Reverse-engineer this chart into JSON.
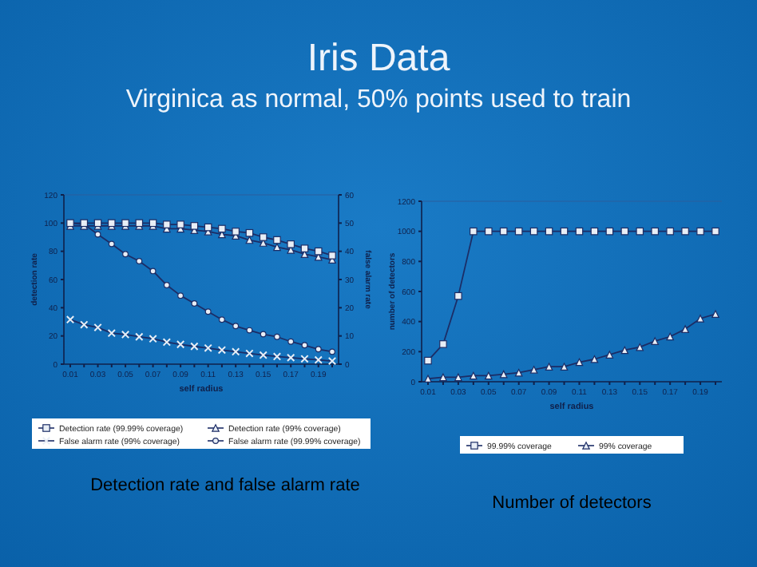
{
  "chart_data": [
    {
      "type": "line",
      "title": "Iris Data",
      "subtitle": "Virginica as normal, 50% points used to train",
      "xlabel": "self radius",
      "ylabel": "detection rate",
      "y2label": "false alarm rate",
      "annotations": [
        "Detection rate and false alarm rate"
      ],
      "categories": [
        "0.01",
        null,
        "0.03",
        null,
        "0.05",
        null,
        "0.07",
        null,
        "0.09",
        null,
        "0.11",
        null,
        "0.13",
        null,
        "0.15",
        null,
        "0.17",
        null,
        "0.19",
        null
      ],
      "ylim": [
        0,
        120
      ],
      "yticks": [
        0,
        20,
        40,
        60,
        80,
        100,
        120
      ],
      "y2lim": [
        0,
        60
      ],
      "y2ticks": [
        0,
        10,
        20,
        30,
        40,
        50,
        60
      ],
      "grid": false,
      "legend": "bottom",
      "series": [
        {
          "name": "Detection rate (99.99% coverage)",
          "color": "#1c2d66",
          "marker": "square",
          "values": [
            100,
            100,
            100,
            100,
            100,
            100,
            100,
            99,
            99,
            98,
            97,
            96,
            94,
            93,
            90,
            88,
            85,
            82,
            80,
            77
          ]
        },
        {
          "name": "Detection rate (99% coverage)",
          "color": "#1c2d66",
          "marker": "triangle",
          "values": [
            98,
            98,
            98,
            98,
            98,
            98,
            98,
            96,
            96,
            95,
            94,
            92,
            91,
            88,
            86,
            83,
            81,
            78,
            76,
            74
          ]
        },
        {
          "name": "False alarm rate (99% coverage)",
          "color": "#1c2d66",
          "marker": "cross",
          "axis": "y2",
          "values": [
            15.8,
            14,
            13,
            11,
            10.5,
            9.7,
            9,
            7.8,
            7,
            6.3,
            5.7,
            5,
            4.4,
            3.8,
            3.2,
            2.7,
            2.3,
            1.9,
            1.5,
            1.1
          ]
        },
        {
          "name": "False alarm rate (99.99% coverage)",
          "color": "#1c2d66",
          "marker": "circle",
          "axis": "y2",
          "values": [
            50,
            49.6,
            46,
            42.6,
            39,
            36.5,
            33,
            28,
            24.3,
            21.5,
            18.6,
            15.8,
            13.5,
            12,
            10.6,
            9.7,
            8,
            6.7,
            5.3,
            4.4
          ]
        }
      ]
    },
    {
      "type": "line",
      "xlabel": "self radius",
      "ylabel": "number of detectors",
      "annotations": [
        "Number of detectors"
      ],
      "categories": [
        "0.01",
        null,
        "0.03",
        null,
        "0.05",
        null,
        "0.07",
        null,
        "0.09",
        null,
        "0.11",
        null,
        "0.13",
        null,
        "0.15",
        null,
        "0.17",
        null,
        "0.19",
        null
      ],
      "ylim": [
        0,
        1200
      ],
      "yticks": [
        0,
        200,
        400,
        600,
        800,
        1000,
        1200
      ],
      "grid": false,
      "legend": "bottom",
      "series": [
        {
          "name": "99.99% coverage",
          "color": "#1c2d66",
          "marker": "square",
          "values": [
            140,
            250,
            570,
            1000,
            1000,
            1000,
            1000,
            1000,
            1000,
            1000,
            1000,
            1000,
            1000,
            1000,
            1000,
            1000,
            1000,
            1000,
            1000,
            1000
          ]
        },
        {
          "name": "99% coverage",
          "color": "#1c2d66",
          "marker": "triangle",
          "values": [
            20,
            30,
            30,
            40,
            40,
            50,
            60,
            80,
            100,
            100,
            130,
            150,
            180,
            210,
            230,
            270,
            300,
            350,
            420,
            450
          ]
        }
      ]
    }
  ]
}
